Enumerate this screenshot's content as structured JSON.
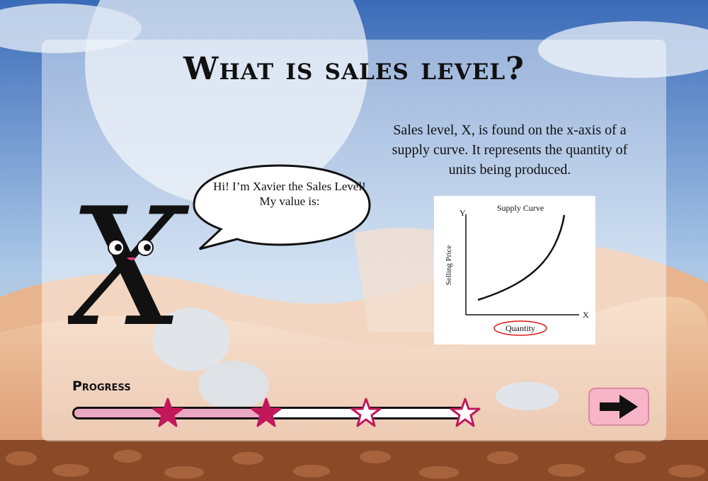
{
  "page": {
    "title": "What is sales level?",
    "explanation": "Sales level, X, is found on the x-axis of a supply curve. It represents the quantity of units being produced."
  },
  "character": {
    "letter": "X",
    "speech": "Hi! I’m Xavier the Sales Level! My value is:"
  },
  "chart": {
    "title": "Supply Curve",
    "y_axis_letter": "Y",
    "x_axis_letter": "X",
    "ylabel": "Selling Price",
    "xlabel": "Quantity"
  },
  "progress": {
    "label": "Progress",
    "fraction": 0.5,
    "stars_total": 4,
    "stars_earned": 2
  },
  "navigation": {
    "next_icon": "arrow-right-icon"
  },
  "colors": {
    "accent_pink": "#f8b4c8",
    "star_filled": "#c2185b",
    "progress_fill": "#eba7bf"
  }
}
